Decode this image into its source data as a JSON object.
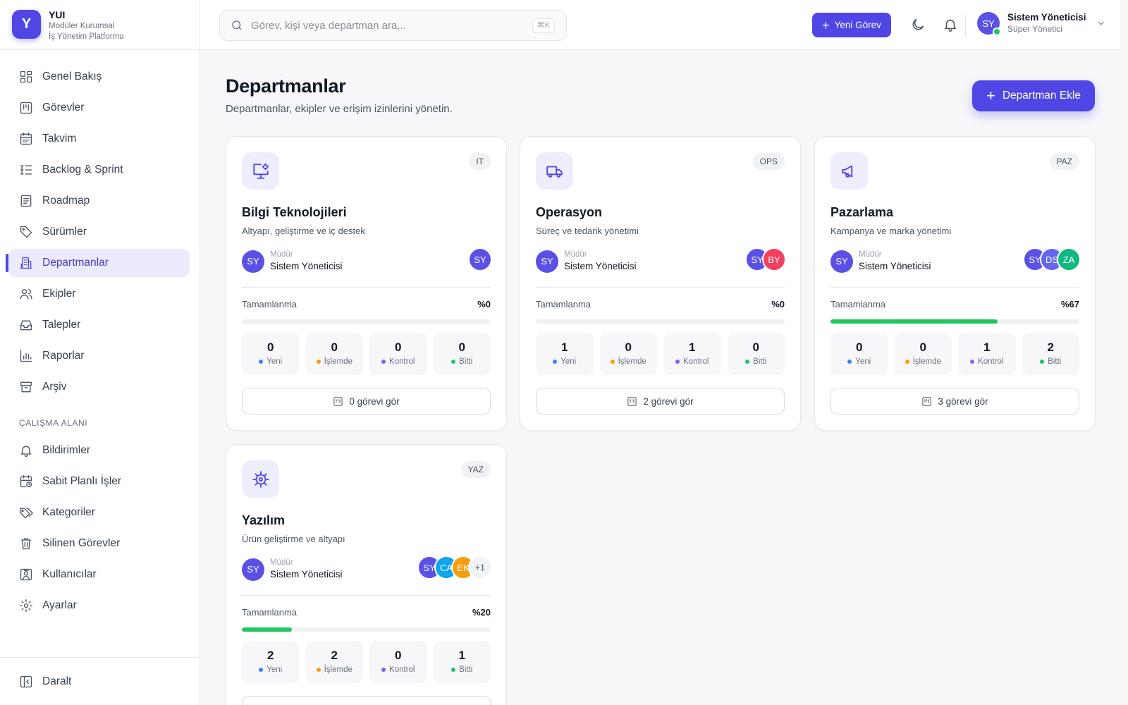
{
  "brand": {
    "logo_letter": "Y",
    "name": "YUI",
    "subtitle_line1": "Modüler Kurumsal",
    "subtitle_line2": "İş Yönetim Platformu"
  },
  "sidebar": {
    "items": [
      {
        "label": "Genel Bakış",
        "icon": "grid-icon"
      },
      {
        "label": "Görevler",
        "icon": "kanban-icon"
      },
      {
        "label": "Takvim",
        "icon": "calendar-icon"
      },
      {
        "label": "Backlog & Sprint",
        "icon": "list-tree-icon"
      },
      {
        "label": "Roadmap",
        "icon": "roadmap-icon"
      },
      {
        "label": "Sürümler",
        "icon": "tag-icon"
      },
      {
        "label": "Departmanlar",
        "icon": "building-icon",
        "active": true
      },
      {
        "label": "Ekipler",
        "icon": "users-icon"
      },
      {
        "label": "Talepler",
        "icon": "inbox-icon"
      },
      {
        "label": "Raporlar",
        "icon": "bar-chart-icon"
      },
      {
        "label": "Arşiv",
        "icon": "archive-icon"
      }
    ],
    "section_label": "ÇALIŞMA ALANI",
    "workspace_items": [
      {
        "label": "Bildirimler",
        "icon": "bell-icon"
      },
      {
        "label": "Sabit Planlı İşler",
        "icon": "calendar-clock-icon"
      },
      {
        "label": "Kategoriler",
        "icon": "tags-icon"
      },
      {
        "label": "Silinen Görevler",
        "icon": "trash-icon"
      },
      {
        "label": "Kullanıcılar",
        "icon": "user-square-icon"
      },
      {
        "label": "Ayarlar",
        "icon": "gear-icon"
      }
    ],
    "collapse_label": "Daralt"
  },
  "topbar": {
    "search_placeholder": "Görev, kişi veya departman ara...",
    "search_shortcut": "⌘K",
    "new_task_label": "Yeni Görev",
    "user_initials": "SY",
    "user_name": "Sistem Yöneticisi",
    "user_role": "Süper Yönetici"
  },
  "page": {
    "title": "Departmanlar",
    "subtitle": "Departmanlar, ekipler ve erişim izinlerini yönetin.",
    "add_button_label": "Departman Ekle"
  },
  "labels": {
    "manager_role": "Müdür",
    "progress": "Tamamlanma",
    "status_new": "Yeni",
    "status_in_progress": "İşlemde",
    "status_review": "Kontrol",
    "status_done": "Bitti"
  },
  "colors": {
    "accent": "#4f46e5",
    "status_new": "#3b82f6",
    "status_in_progress": "#f59e0b",
    "status_review": "#8b5cf6",
    "status_done": "#22c55e"
  },
  "departments": [
    {
      "code": "IT",
      "icon": "monitor-gear-icon",
      "name": "Bilgi Teknolojileri",
      "description": "Altyapı, geliştirme ve iç destek",
      "manager_initials": "SY",
      "manager_name": "Sistem Yöneticisi",
      "members": [
        {
          "initials": "SY",
          "color": "#5b50e6"
        }
      ],
      "progress_label": "%0",
      "progress": 0,
      "stats": {
        "new": "0",
        "in_progress": "0",
        "review": "0",
        "done": "0"
      },
      "view_label": "0 görevi gör"
    },
    {
      "code": "OPS",
      "icon": "truck-icon",
      "name": "Operasyon",
      "description": "Süreç ve tedarik yönetimi",
      "manager_initials": "SY",
      "manager_name": "Sistem Yöneticisi",
      "members": [
        {
          "initials": "SY",
          "color": "#5b50e6"
        },
        {
          "initials": "BY",
          "color": "#f43f5e"
        }
      ],
      "progress_label": "%0",
      "progress": 0,
      "stats": {
        "new": "1",
        "in_progress": "0",
        "review": "1",
        "done": "0"
      },
      "view_label": "2 görevi gör"
    },
    {
      "code": "PAZ",
      "icon": "megaphone-icon",
      "name": "Pazarlama",
      "description": "Kampanya ve marka yönetimi",
      "manager_initials": "SY",
      "manager_name": "Sistem Yöneticisi",
      "members": [
        {
          "initials": "SY",
          "color": "#5b50e6"
        },
        {
          "initials": "DS",
          "color": "#6366f1"
        },
        {
          "initials": "ZA",
          "color": "#10b981"
        }
      ],
      "progress_label": "%67",
      "progress": 0.67,
      "stats": {
        "new": "0",
        "in_progress": "0",
        "review": "1",
        "done": "2"
      },
      "view_label": "3 görevi gör"
    },
    {
      "code": "YAZ",
      "icon": "cog-icon",
      "name": "Yazılım",
      "description": "Ürün geliştirme ve altyapı",
      "manager_initials": "SY",
      "manager_name": "Sistem Yöneticisi",
      "members": [
        {
          "initials": "SY",
          "color": "#5b50e6"
        },
        {
          "initials": "CA",
          "color": "#0ea5e9"
        },
        {
          "initials": "EK",
          "color": "#f59e0b"
        },
        {
          "initials": "+1",
          "color": "#f1f2f4"
        }
      ],
      "progress_label": "%20",
      "progress": 0.2,
      "stats": {
        "new": "2",
        "in_progress": "2",
        "review": "0",
        "done": "1"
      },
      "view_label": ""
    }
  ]
}
